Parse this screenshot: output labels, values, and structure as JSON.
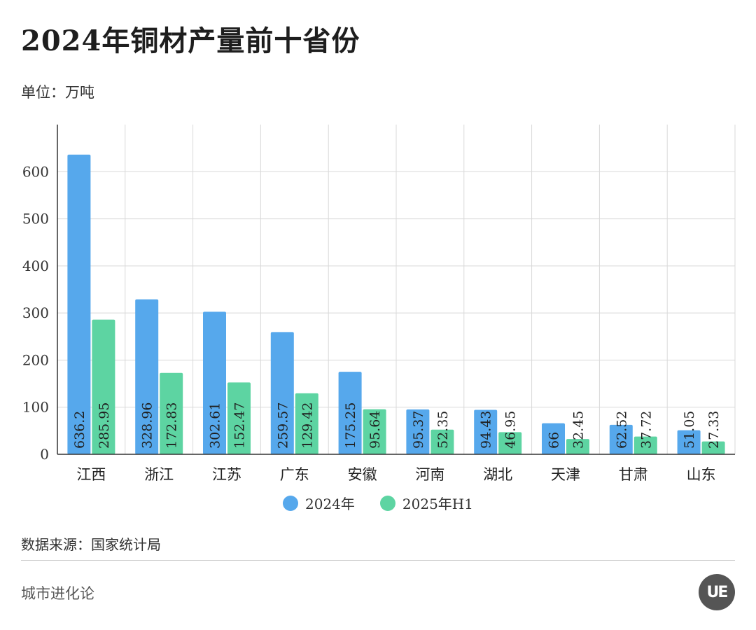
{
  "title": "2024年铜材产量前十省份",
  "unit_label": "单位：万吨",
  "source_label": "数据来源：国家统计局",
  "brand_label": "城市进化论",
  "logo_text": "UE",
  "colors": {
    "series_2024": "#56a8ec",
    "series_2025": "#5dd4a2",
    "grid": "#d9d9d9",
    "axis": "#333333"
  },
  "chart_data": {
    "type": "bar",
    "title": "2024年铜材产量前十省份",
    "ylabel": "单位：万吨",
    "xlabel": "",
    "ylim": [
      0,
      700
    ],
    "yticks": [
      0,
      100,
      200,
      300,
      400,
      500,
      600
    ],
    "grid": true,
    "legend_position": "bottom-center",
    "categories": [
      "江西",
      "浙江",
      "江苏",
      "广东",
      "安徽",
      "河南",
      "湖北",
      "天津",
      "甘肃",
      "山东"
    ],
    "series": [
      {
        "name": "2024年",
        "values": [
          636.2,
          328.96,
          302.61,
          259.57,
          175.25,
          95.37,
          94.43,
          66,
          62.52,
          51.05
        ]
      },
      {
        "name": "2025年H1",
        "values": [
          285.95,
          172.83,
          152.47,
          129.42,
          95.64,
          52.35,
          46.95,
          32.45,
          37.72,
          27.33
        ]
      }
    ]
  }
}
